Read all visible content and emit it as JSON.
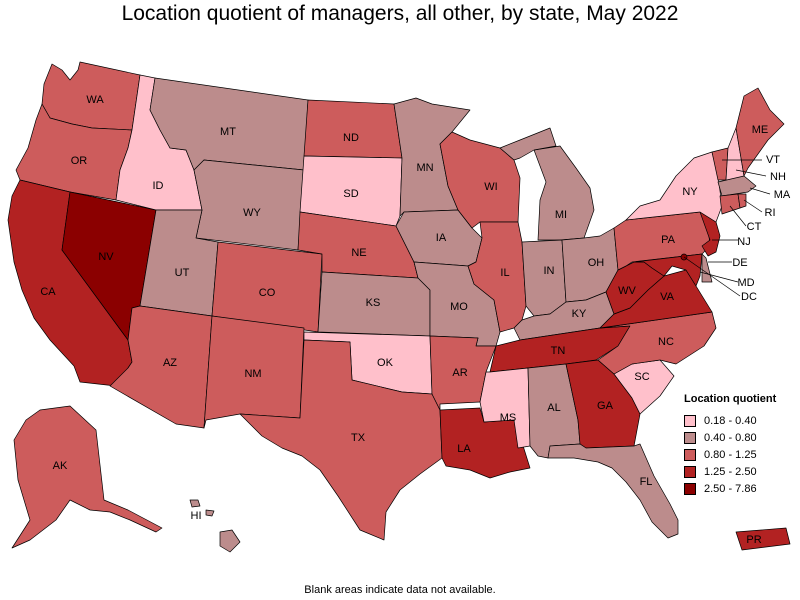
{
  "title": "Location quotient of managers, all other, by state, May 2022",
  "footnote": "Blank areas indicate data not available.",
  "legend": {
    "title": "Location quotient",
    "items": [
      {
        "label": "0.18 - 0.40",
        "color": "#ffc0cb"
      },
      {
        "label": "0.40 - 0.80",
        "color": "#bc8c8c"
      },
      {
        "label": "0.80 - 1.25",
        "color": "#cd5c5c"
      },
      {
        "label": "1.25 - 2.50",
        "color": "#b22222"
      },
      {
        "label": "2.50 - 7.86",
        "color": "#8b0000"
      }
    ]
  },
  "states": {
    "WA": {
      "label": "WA",
      "class": 2
    },
    "OR": {
      "label": "OR",
      "class": 2
    },
    "CA": {
      "label": "CA",
      "class": 3
    },
    "NV": {
      "label": "NV",
      "class": 4
    },
    "ID": {
      "label": "ID",
      "class": 0
    },
    "MT": {
      "label": "MT",
      "class": 1
    },
    "WY": {
      "label": "WY",
      "class": 1
    },
    "UT": {
      "label": "UT",
      "class": 1
    },
    "AZ": {
      "label": "AZ",
      "class": 2
    },
    "CO": {
      "label": "CO",
      "class": 2
    },
    "NM": {
      "label": "NM",
      "class": 2
    },
    "ND": {
      "label": "ND",
      "class": 2
    },
    "SD": {
      "label": "SD",
      "class": 0
    },
    "NE": {
      "label": "NE",
      "class": 2
    },
    "KS": {
      "label": "KS",
      "class": 1
    },
    "OK": {
      "label": "OK",
      "class": 0
    },
    "TX": {
      "label": "TX",
      "class": 2
    },
    "MN": {
      "label": "MN",
      "class": 1
    },
    "IA": {
      "label": "IA",
      "class": 1
    },
    "MO": {
      "label": "MO",
      "class": 1
    },
    "AR": {
      "label": "AR",
      "class": 2
    },
    "LA": {
      "label": "LA",
      "class": 3
    },
    "WI": {
      "label": "WI",
      "class": 2
    },
    "IL": {
      "label": "IL",
      "class": 2
    },
    "MI": {
      "label": "MI",
      "class": 1
    },
    "IN": {
      "label": "IN",
      "class": 1
    },
    "OH": {
      "label": "OH",
      "class": 1
    },
    "KY": {
      "label": "KY",
      "class": 1
    },
    "TN": {
      "label": "TN",
      "class": 3
    },
    "MS": {
      "label": "MS",
      "class": 0
    },
    "AL": {
      "label": "AL",
      "class": 1
    },
    "GA": {
      "label": "GA",
      "class": 3
    },
    "FL": {
      "label": "FL",
      "class": 1
    },
    "SC": {
      "label": "SC",
      "class": 0
    },
    "NC": {
      "label": "NC",
      "class": 2
    },
    "VA": {
      "label": "VA",
      "class": 3
    },
    "WV": {
      "label": "WV",
      "class": 3
    },
    "PA": {
      "label": "PA",
      "class": 2
    },
    "NY": {
      "label": "NY",
      "class": 0
    },
    "ME": {
      "label": "ME",
      "class": 2
    },
    "VT": {
      "label": "VT",
      "class": 2
    },
    "NH": {
      "label": "NH",
      "class": 0
    },
    "MA": {
      "label": "MA",
      "class": 1
    },
    "RI": {
      "label": "RI",
      "class": 2
    },
    "CT": {
      "label": "CT",
      "class": 2
    },
    "NJ": {
      "label": "NJ",
      "class": 3
    },
    "DE": {
      "label": "DE",
      "class": 1
    },
    "MD": {
      "label": "MD",
      "class": 3
    },
    "DC": {
      "label": "DC",
      "class": 4
    },
    "AK": {
      "label": "AK",
      "class": 2
    },
    "HI": {
      "label": "HI",
      "class": 1
    },
    "PR": {
      "label": "PR",
      "class": 3
    }
  }
}
